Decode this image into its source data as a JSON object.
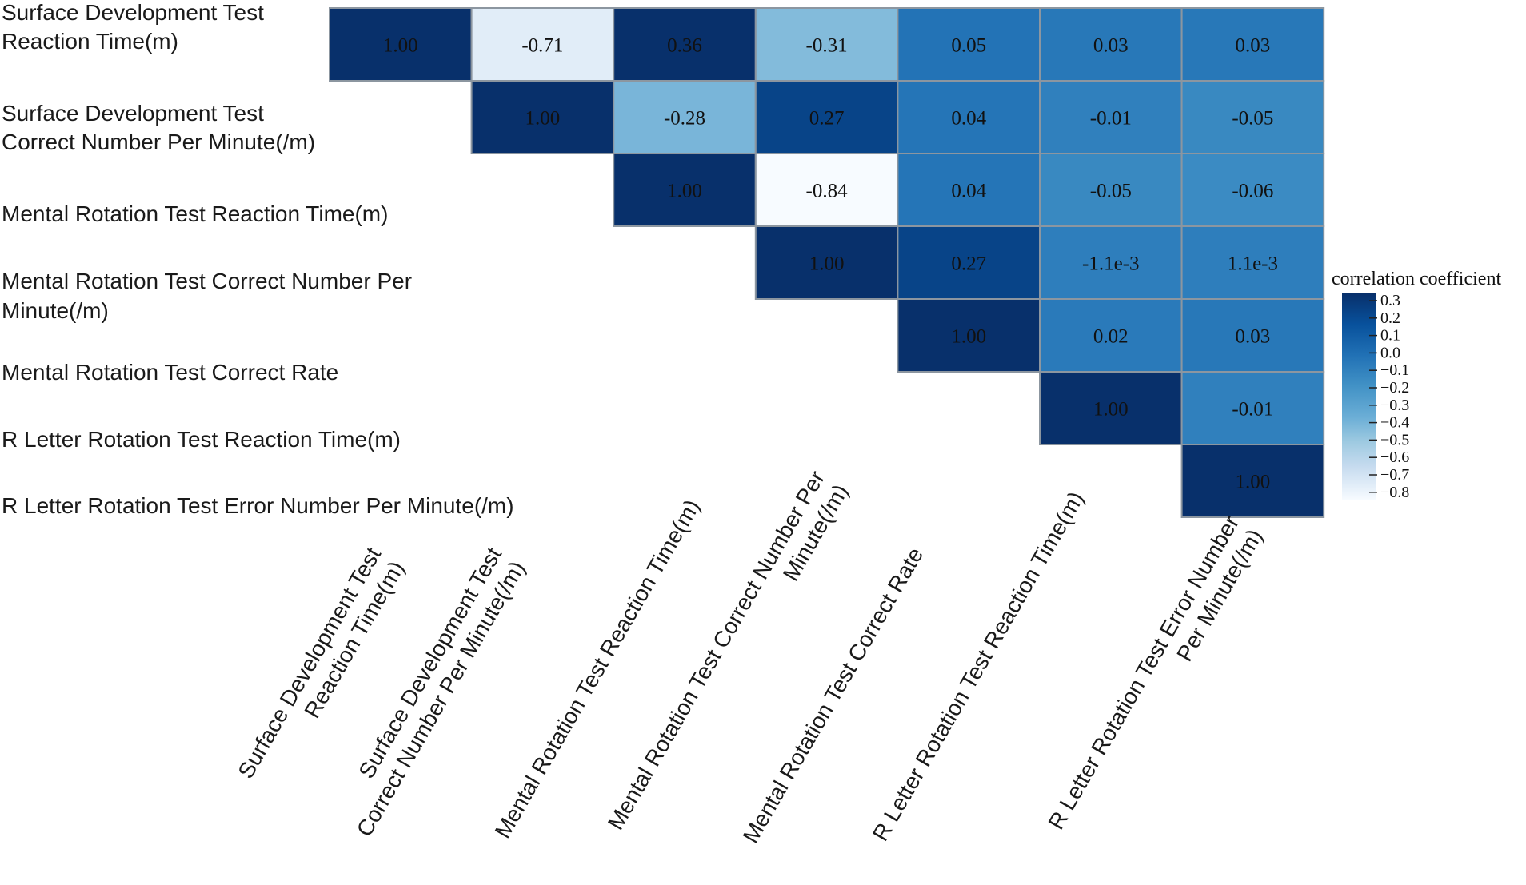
{
  "chart_data": {
    "type": "heatmap",
    "title": "",
    "labels": [
      [
        "Surface Development Test",
        "Reaction Time(m)"
      ],
      [
        "Surface Development Test",
        "Correct Number Per Minute(/m)"
      ],
      [
        "Mental Rotation Test Reaction Time(m)"
      ],
      [
        "Mental Rotation Test Correct Number Per",
        "Minute(/m)"
      ],
      [
        "Mental Rotation Test Correct Rate"
      ],
      [
        "R Letter Rotation Test Reaction Time(m)"
      ],
      [
        "R Letter Rotation Test Error Number Per Minute(/m)"
      ]
    ],
    "col_labels": [
      [
        "Surface Development Test",
        "Reaction Time(m)"
      ],
      [
        "Surface Development Test",
        "Correct Number Per Minute(/m)"
      ],
      [
        "Mental Rotation Test Reaction Time(m)"
      ],
      [
        "Mental Rotation Test Correct Number Per",
        "Minute(/m)"
      ],
      [
        "Mental Rotation Test Correct Rate"
      ],
      [
        "R Letter Rotation Test Reaction Time(m)"
      ],
      [
        "R Letter Rotation Test Error Number",
        "Per Minute(/m)"
      ]
    ],
    "matrix": [
      [
        1.0,
        -0.71,
        0.36,
        -0.31,
        0.05,
        0.03,
        0.03
      ],
      [
        null,
        1.0,
        -0.28,
        0.27,
        0.04,
        -0.01,
        -0.05
      ],
      [
        null,
        null,
        1.0,
        -0.84,
        0.04,
        -0.05,
        -0.06
      ],
      [
        null,
        null,
        null,
        1.0,
        0.27,
        -0.0011,
        0.0011
      ],
      [
        null,
        null,
        null,
        null,
        1.0,
        0.02,
        0.03
      ],
      [
        null,
        null,
        null,
        null,
        null,
        1.0,
        -0.01
      ],
      [
        null,
        null,
        null,
        null,
        null,
        null,
        1.0
      ]
    ],
    "value_labels": [
      [
        "1.00",
        "-0.71",
        "0.36",
        "-0.31",
        "0.05",
        "0.03",
        "0.03"
      ],
      [
        "",
        "1.00",
        "-0.28",
        "0.27",
        "0.04",
        "-0.01",
        "-0.05"
      ],
      [
        "",
        "",
        "1.00",
        "-0.84",
        "0.04",
        "-0.05",
        "-0.06"
      ],
      [
        "",
        "",
        "",
        "1.00",
        "0.27",
        "-1.1e-3",
        "1.1e-3"
      ],
      [
        "",
        "",
        "",
        "",
        "1.00",
        "0.02",
        "0.03"
      ],
      [
        "",
        "",
        "",
        "",
        "",
        "1.00",
        "-0.01"
      ],
      [
        "",
        "",
        "",
        "",
        "",
        "",
        "1.00"
      ]
    ],
    "triangle": "upper",
    "legend": {
      "title": "correlation coefficient",
      "placement": "right",
      "ticks": [
        "0.3",
        "0.2",
        "0.1",
        "0.0",
        "−0.1",
        "−0.2",
        "−0.3",
        "−0.4",
        "−0.5",
        "−0.6",
        "−0.7",
        "−0.8"
      ],
      "range": [
        -0.84,
        0.36
      ]
    },
    "colors": {
      "low": "#f7fbff",
      "mid": "#6baed6",
      "high": "#08306b",
      "scale": [
        "#f7fbff",
        "#deebf7",
        "#c6dbef",
        "#9ecae1",
        "#6baed6",
        "#4292c6",
        "#2171b5",
        "#08519c",
        "#08306b"
      ],
      "cell_border": "#8c96a0"
    }
  }
}
